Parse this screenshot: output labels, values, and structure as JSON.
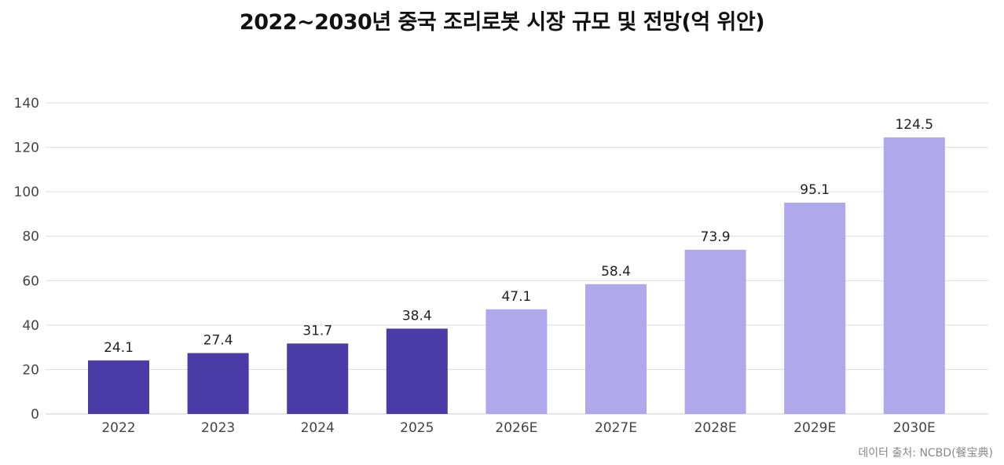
{
  "chart_data": {
    "type": "bar",
    "title": "2022~2030년 중국 조리로봇 시장 규모 및 전망(억 위안)",
    "categories": [
      "2022",
      "2023",
      "2024",
      "2025",
      "2026E",
      "2027E",
      "2028E",
      "2029E",
      "2030E"
    ],
    "values": [
      24.1,
      27.4,
      31.7,
      38.4,
      47.1,
      58.4,
      73.9,
      95.1,
      124.5
    ],
    "value_labels": [
      "24.1",
      "27.4",
      "31.7",
      "38.4",
      "47.1",
      "58.4",
      "73.9",
      "95.1",
      "124.5"
    ],
    "forecast": [
      false,
      false,
      false,
      false,
      true,
      true,
      true,
      true,
      true
    ],
    "ylim": [
      0,
      140
    ],
    "yticks": [
      0,
      20,
      40,
      60,
      80,
      100,
      120,
      140
    ],
    "ytick_labels": [
      "0",
      "20",
      "40",
      "60",
      "80",
      "100",
      "120",
      "140"
    ],
    "grid": true,
    "colors": {
      "actual": "#4a3ba6",
      "forecast": "#afa8ea",
      "grid": "#dddddd",
      "axis_text": "#444444"
    }
  },
  "source": "데이터 출처: NCBD(餐宝典)"
}
